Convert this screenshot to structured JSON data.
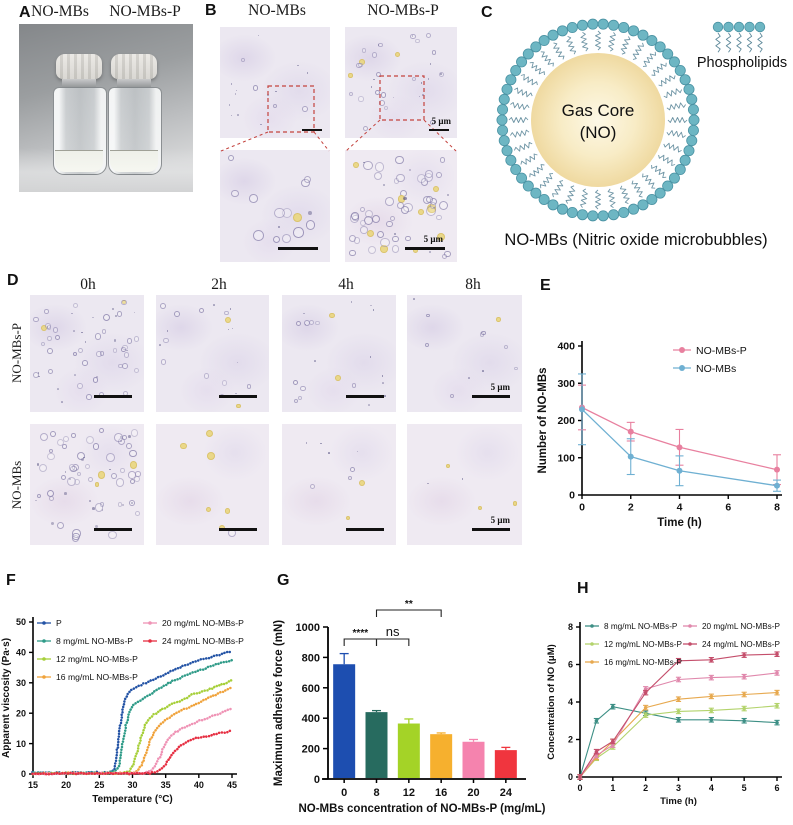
{
  "panels": {
    "A": {
      "letter": "A",
      "vial_labels": [
        "NO-MBs",
        "NO-MBs-P"
      ]
    },
    "B": {
      "letter": "B",
      "col_labels": [
        "NO-MBs",
        "NO-MBs-P"
      ],
      "scale_label": "5 μm"
    },
    "C": {
      "letter": "C",
      "core_label": [
        "Gas Core",
        "(NO)"
      ],
      "legend_label": "Phospholipids",
      "caption": "NO-MBs (Nitric oxide microbubbles)",
      "colors": {
        "head": "#6db6c3",
        "head_stroke": "#4a92a3",
        "tail": "#5f8a9b",
        "core_center": "#fdf8e6",
        "core_mid": "#f8ecc6",
        "core_edge": "#efd9a0"
      }
    },
    "D": {
      "letter": "D",
      "col_labels": [
        "0h",
        "2h",
        "4h",
        "8h"
      ],
      "row_labels": [
        "NO-MBs-P",
        "NO-MBs"
      ],
      "scale_label": "5 μm"
    },
    "E": {
      "letter": "E"
    },
    "F": {
      "letter": "F"
    },
    "G": {
      "letter": "G"
    },
    "H": {
      "letter": "H"
    }
  },
  "chart_data": [
    {
      "id": "E",
      "type": "line",
      "xlabel": "Time (h)",
      "ylabel": "Number of NO-MBs",
      "xlim": [
        0,
        8
      ],
      "ylim": [
        0,
        400
      ],
      "xticks": [
        0,
        2,
        4,
        6,
        8
      ],
      "yticks": [
        0,
        100,
        200,
        300,
        400
      ],
      "x": [
        0,
        2,
        4,
        8
      ],
      "series": [
        {
          "name": "NO-MBs-P",
          "color": "#e8809f",
          "values": [
            235,
            170,
            128,
            68
          ],
          "errors": [
            60,
            25,
            48,
            40
          ]
        },
        {
          "name": "NO-MBs",
          "color": "#6fb0d2",
          "values": [
            230,
            103,
            65,
            25
          ],
          "errors": [
            95,
            48,
            40,
            15
          ]
        }
      ],
      "legend_position": "top-right",
      "grid": false
    },
    {
      "id": "F",
      "type": "line",
      "xlabel": "Temperature (°C)",
      "ylabel": "Apparent viscosity (Pa·s)",
      "xlim": [
        15,
        45
      ],
      "ylim": [
        0,
        50
      ],
      "xticks": [
        15,
        20,
        25,
        30,
        35,
        40,
        45
      ],
      "yticks": [
        0,
        10,
        20,
        30,
        40,
        50
      ],
      "series": [
        {
          "name": "P",
          "color": "#2353a5",
          "points": [
            [
              15,
              0.4
            ],
            [
              20,
              0.4
            ],
            [
              25,
              0.5
            ],
            [
              26.5,
              0.7
            ],
            [
              27.2,
              1.5
            ],
            [
              27.6,
              6
            ],
            [
              28,
              14
            ],
            [
              28.5,
              21
            ],
            [
              29,
              25
            ],
            [
              29.5,
              27
            ],
            [
              30,
              28
            ],
            [
              31,
              29
            ],
            [
              32,
              30
            ],
            [
              34,
              32
            ],
            [
              36,
              34
            ],
            [
              38,
              36
            ],
            [
              40,
              37.5
            ],
            [
              42,
              38.5
            ],
            [
              44,
              40
            ],
            [
              45,
              40.5
            ]
          ]
        },
        {
          "name": "8 mg/mL NO-MBs-P",
          "color": "#2f9b88",
          "points": [
            [
              15,
              0.3
            ],
            [
              26,
              0.3
            ],
            [
              27.3,
              0.8
            ],
            [
              28,
              3
            ],
            [
              28.5,
              10
            ],
            [
              29,
              16
            ],
            [
              29.5,
              20
            ],
            [
              30,
              22.5
            ],
            [
              31,
              24
            ],
            [
              32,
              25.5
            ],
            [
              34,
              28
            ],
            [
              36,
              30.5
            ],
            [
              38,
              32.5
            ],
            [
              40,
              34
            ],
            [
              42,
              35.5
            ],
            [
              44,
              37
            ],
            [
              45,
              37.5
            ]
          ]
        },
        {
          "name": "12 mg/mL NO-MBs-P",
          "color": "#a6cf39",
          "points": [
            [
              15,
              0.2
            ],
            [
              28.6,
              0.3
            ],
            [
              29.6,
              1
            ],
            [
              30.2,
              3.5
            ],
            [
              30.8,
              8
            ],
            [
              31.4,
              13
            ],
            [
              32,
              16.5
            ],
            [
              32.6,
              18.5
            ],
            [
              33.5,
              20
            ],
            [
              35,
              22
            ],
            [
              37,
              24
            ],
            [
              39,
              26
            ],
            [
              41,
              27.5
            ],
            [
              43,
              29
            ],
            [
              45,
              30.8
            ]
          ]
        },
        {
          "name": "16 mg/mL NO-MBs-P",
          "color": "#f0a33c",
          "points": [
            [
              15,
              0.2
            ],
            [
              29.8,
              0.3
            ],
            [
              30.8,
              1
            ],
            [
              31.4,
              3
            ],
            [
              32,
              6.5
            ],
            [
              32.6,
              10.5
            ],
            [
              33.2,
              13.5
            ],
            [
              34,
              16
            ],
            [
              35,
              18
            ],
            [
              36.5,
              20
            ],
            [
              38,
              21.5
            ],
            [
              40,
              23.5
            ],
            [
              42,
              25.5
            ],
            [
              44,
              27.5
            ],
            [
              45,
              28.5
            ]
          ]
        },
        {
          "name": "20 mg/mL NO-MBs-P",
          "color": "#ef93b5",
          "points": [
            [
              15,
              0.1
            ],
            [
              31.6,
              0.3
            ],
            [
              32.8,
              1
            ],
            [
              33.4,
              2.5
            ],
            [
              34,
              5
            ],
            [
              34.6,
              8
            ],
            [
              35.2,
              11
            ],
            [
              36,
              13
            ],
            [
              37,
              14.5
            ],
            [
              38,
              15.5
            ],
            [
              40,
              17.5
            ],
            [
              42,
              19
            ],
            [
              44,
              20.5
            ],
            [
              45,
              21.5
            ]
          ]
        },
        {
          "name": "24 mg/mL NO-MBs-P",
          "color": "#e62f42",
          "points": [
            [
              15,
              0.1
            ],
            [
              32.6,
              0.2
            ],
            [
              33.8,
              0.8
            ],
            [
              34.5,
              2
            ],
            [
              35.2,
              4
            ],
            [
              36,
              6.5
            ],
            [
              36.8,
              8.5
            ],
            [
              37.6,
              10
            ],
            [
              38.5,
              11
            ],
            [
              40,
              12
            ],
            [
              41.5,
              12.5
            ],
            [
              43,
              13.5
            ],
            [
              44,
              13.5
            ],
            [
              45,
              14.5
            ]
          ]
        }
      ],
      "legend_position": "top-left-two-columns",
      "grid": false
    },
    {
      "id": "G",
      "type": "bar",
      "xlabel": "NO-MBs concentration of NO-MBs-P (mg/mL)",
      "ylabel": "Maximum adhesive force (mN)",
      "categories": [
        "0",
        "8",
        "12",
        "16",
        "20",
        "24"
      ],
      "values": [
        755,
        440,
        365,
        295,
        245,
        190
      ],
      "errors": [
        70,
        10,
        30,
        8,
        15,
        18
      ],
      "colors": [
        "#1d4eb0",
        "#276b5f",
        "#a4d327",
        "#f6b02e",
        "#f583ae",
        "#f0353e"
      ],
      "ylim": [
        0,
        1000
      ],
      "yticks": [
        0,
        200,
        400,
        600,
        800,
        1000
      ],
      "significance": [
        {
          "from": 0,
          "to": 1,
          "label": "****"
        },
        {
          "from": 1,
          "to": 2,
          "label": "ns"
        },
        {
          "from": 1,
          "to": 3,
          "label": "**"
        }
      ],
      "grid": false
    },
    {
      "id": "H",
      "type": "line",
      "xlabel": "Time (h)",
      "ylabel": "Concentration of NO (μM)",
      "xlim": [
        0,
        6
      ],
      "ylim": [
        0,
        8
      ],
      "xticks": [
        0,
        1,
        2,
        3,
        4,
        5,
        6
      ],
      "yticks": [
        0,
        2,
        4,
        6,
        8
      ],
      "x": [
        0,
        0.5,
        1,
        2,
        3,
        4,
        5,
        6
      ],
      "series": [
        {
          "name": "8 mg/mL NO-MBs-P",
          "color": "#3d8f85",
          "values": [
            0,
            3.0,
            3.75,
            3.4,
            3.05,
            3.05,
            3.0,
            2.9
          ]
        },
        {
          "name": "12 mg/mL NO-MBs-P",
          "color": "#b3d36c",
          "values": [
            0,
            1.0,
            1.6,
            3.3,
            3.5,
            3.55,
            3.65,
            3.8
          ]
        },
        {
          "name": "16 mg/mL NO-MBs-P",
          "color": "#e7a94f",
          "values": [
            0,
            1.05,
            1.9,
            3.7,
            4.15,
            4.3,
            4.4,
            4.5
          ]
        },
        {
          "name": "20 mg/mL NO-MBs-P",
          "color": "#e088ac",
          "values": [
            0,
            1.15,
            1.7,
            4.7,
            5.2,
            5.3,
            5.35,
            5.55
          ]
        },
        {
          "name": "24 mg/mL NO-MBs-P",
          "color": "#c44e6b",
          "values": [
            0,
            1.35,
            1.9,
            4.5,
            6.2,
            6.25,
            6.5,
            6.55
          ]
        }
      ],
      "legend_position": "top-two-columns",
      "grid": false
    }
  ]
}
